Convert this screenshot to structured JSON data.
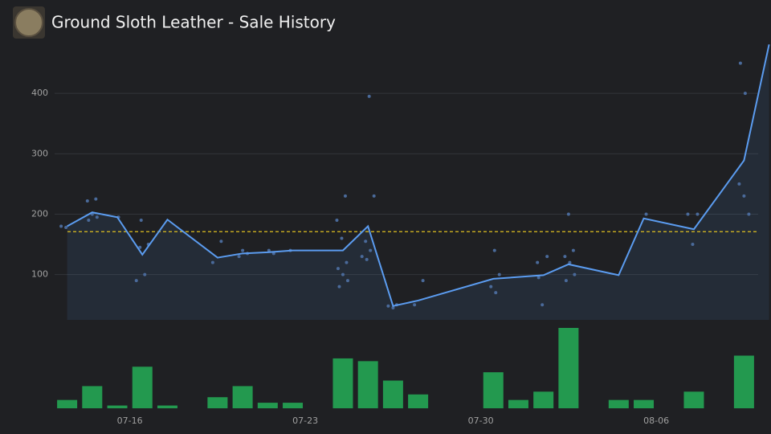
{
  "chart_data": {
    "type": "line",
    "title": "Ground Sloth Leather - Sale History",
    "x": [
      "07-13",
      "07-14",
      "07-15",
      "07-16",
      "07-17",
      "07-19",
      "07-20",
      "07-21",
      "07-22",
      "07-24",
      "07-25",
      "07-26",
      "07-27",
      "07-30",
      "08-01",
      "08-02",
      "08-04",
      "08-05",
      "08-07",
      "08-09",
      "08-10"
    ],
    "values": [
      180,
      203,
      195,
      133,
      191,
      128,
      135,
      137,
      140,
      140,
      180,
      48,
      57,
      93,
      99,
      117,
      99,
      193,
      175,
      289,
      481
    ],
    "color": "#5b9cf0",
    "average": 171,
    "average_color": "#e0c020",
    "xlim": [
      "07-13",
      "08-10"
    ],
    "xticks": [
      "07-16",
      "07-23",
      "07-30",
      "08-06"
    ],
    "ylim": [
      25,
      500
    ],
    "yticks": [
      100,
      200,
      300,
      400
    ],
    "grid": true,
    "sales": {
      "color": "#4a6a9a",
      "x": [
        "07-13",
        "07-13",
        "07-14",
        "07-14",
        "07-14",
        "07-14",
        "07-14",
        "07-15",
        "07-16",
        "07-16",
        "07-16",
        "07-16",
        "07-16",
        "07-19",
        "07-19",
        "07-20",
        "07-20",
        "07-20",
        "07-21",
        "07-21",
        "07-22",
        "07-24",
        "07-24",
        "07-24",
        "07-24",
        "07-24",
        "07-24",
        "07-24",
        "07-24",
        "07-25",
        "07-25",
        "07-25",
        "07-25",
        "07-25",
        "07-25",
        "07-26",
        "07-26",
        "07-26",
        "07-27",
        "07-27",
        "07-30",
        "07-30",
        "07-30",
        "07-30",
        "08-01",
        "08-01",
        "08-01",
        "08-01",
        "08-02",
        "08-02",
        "08-02",
        "08-02",
        "08-02",
        "08-02",
        "08-05",
        "08-07",
        "08-07",
        "08-07",
        "08-09",
        "08-09",
        "08-09",
        "08-09",
        "08-09"
      ],
      "values": [
        180,
        178,
        225,
        222,
        200,
        195,
        190,
        195,
        150,
        145,
        100,
        90,
        190,
        155,
        120,
        140,
        135,
        130,
        140,
        135,
        140,
        230,
        190,
        160,
        120,
        110,
        100,
        90,
        80,
        395,
        230,
        155,
        140,
        130,
        125,
        50,
        48,
        45,
        90,
        50,
        140,
        100,
        80,
        70,
        120,
        50,
        130,
        95,
        200,
        140,
        130,
        120,
        100,
        90,
        200,
        200,
        150,
        200,
        250,
        230,
        200,
        450,
        400
      ]
    },
    "volume": {
      "type": "bar",
      "x": [
        "07-13",
        "07-14",
        "07-15",
        "07-16",
        "07-17",
        "07-19",
        "07-20",
        "07-21",
        "07-22",
        "07-24",
        "07-25",
        "07-26",
        "07-27",
        "07-30",
        "07-31",
        "08-01",
        "08-02",
        "08-04",
        "08-05",
        "08-07",
        "08-09"
      ],
      "values": [
        3,
        8,
        1,
        15,
        1,
        4,
        8,
        2,
        2,
        18,
        17,
        10,
        5,
        13,
        3,
        6,
        29,
        3,
        3,
        6,
        19
      ],
      "color": "#23994f",
      "ylim": [
        0,
        29
      ]
    }
  }
}
